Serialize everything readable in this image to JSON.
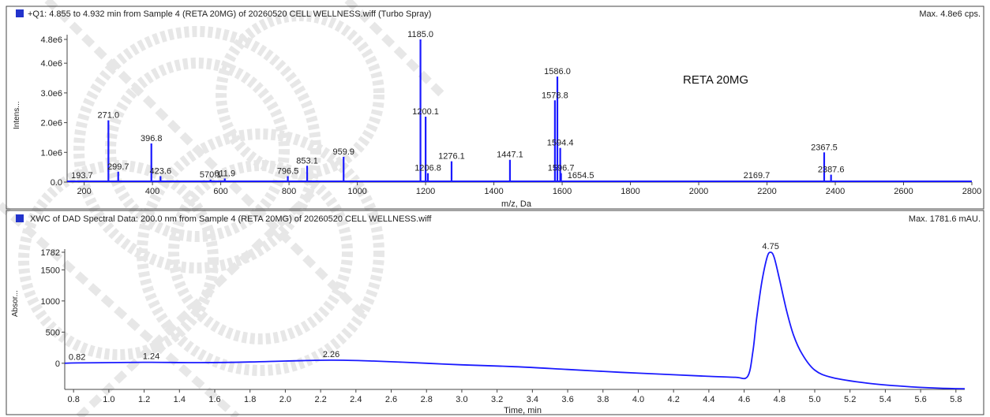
{
  "colors": {
    "trace": "#1a1aff",
    "frame": "#333333",
    "text": "#222222",
    "watermark": "#d4d4d4"
  },
  "chart_data": [
    {
      "type": "line",
      "title": "+Q1: 4.855 to 4.932 min from Sample 4 (RETA 20MG) of 20260520 CELL WELLNESS.wiff (Turbo Spray)",
      "max_label": "Max. 4.8e6 cps.",
      "annotation": "RETA 20MG",
      "xlabel": "m/z, Da",
      "ylabel": "Intens...",
      "xlim": [
        150,
        2800
      ],
      "ylim": [
        0,
        4.8
      ],
      "x_ticks": [
        200,
        400,
        600,
        800,
        1000,
        1200,
        1400,
        1600,
        1800,
        2000,
        2200,
        2400,
        2600,
        2800
      ],
      "y_ticks": [
        {
          "v": 0.0,
          "label": "0.0"
        },
        {
          "v": 1.0,
          "label": "1.0e6"
        },
        {
          "v": 2.0,
          "label": "2.0e6"
        },
        {
          "v": 3.0,
          "label": "3.0e6"
        },
        {
          "v": 4.0,
          "label": "4.0e6"
        },
        {
          "v": 4.8,
          "label": "4.8e6"
        }
      ],
      "peaks": [
        [
          193.7,
          0.05
        ],
        [
          271.0,
          2.08
        ],
        [
          299.7,
          0.35
        ],
        [
          396.8,
          1.3
        ],
        [
          423.6,
          0.2
        ],
        [
          570.1,
          0.08
        ],
        [
          611.9,
          0.12
        ],
        [
          796.5,
          0.2
        ],
        [
          853.1,
          0.55
        ],
        [
          959.9,
          0.85
        ],
        [
          1185.0,
          4.8
        ],
        [
          1200.1,
          2.2
        ],
        [
          1206.8,
          0.3
        ],
        [
          1276.1,
          0.7
        ],
        [
          1447.1,
          0.75
        ],
        [
          1586.0,
          3.55
        ],
        [
          1578.8,
          2.75
        ],
        [
          1594.4,
          1.15
        ],
        [
          1596.7,
          0.3
        ],
        [
          1654.5,
          0.05
        ],
        [
          2169.7,
          0.05
        ],
        [
          2367.5,
          1.0
        ],
        [
          2387.6,
          0.25
        ]
      ],
      "peak_labels": [
        {
          "x": 193.7,
          "y": 0.05,
          "text": "193.7"
        },
        {
          "x": 271.0,
          "y": 2.08,
          "text": "271.0"
        },
        {
          "x": 299.7,
          "y": 0.35,
          "text": "299.7"
        },
        {
          "x": 396.8,
          "y": 1.3,
          "text": "396.8"
        },
        {
          "x": 423.6,
          "y": 0.2,
          "text": "423.6"
        },
        {
          "x": 570.1,
          "y": 0.08,
          "text": "570.1"
        },
        {
          "x": 611.9,
          "y": 0.12,
          "text": "611.9"
        },
        {
          "x": 796.5,
          "y": 0.2,
          "text": "796.5"
        },
        {
          "x": 853.1,
          "y": 0.55,
          "text": "853.1"
        },
        {
          "x": 959.9,
          "y": 0.85,
          "text": "959.9"
        },
        {
          "x": 1185.0,
          "y": 4.8,
          "text": "1185.0"
        },
        {
          "x": 1200.1,
          "y": 2.2,
          "text": "1200.1"
        },
        {
          "x": 1206.8,
          "y": 0.3,
          "text": "1206.8"
        },
        {
          "x": 1276.1,
          "y": 0.7,
          "text": "1276.1"
        },
        {
          "x": 1447.1,
          "y": 0.75,
          "text": "1447.1"
        },
        {
          "x": 1586.0,
          "y": 3.55,
          "text": "1586.0"
        },
        {
          "x": 1578.8,
          "y": 2.75,
          "text": "1578.8"
        },
        {
          "x": 1594.4,
          "y": 1.15,
          "text": "1594.4"
        },
        {
          "x": 1596.7,
          "y": 0.3,
          "text": "1596.7"
        },
        {
          "x": 1654.5,
          "y": 0.05,
          "text": "1654.5"
        },
        {
          "x": 2169.7,
          "y": 0.05,
          "text": "2169.7"
        },
        {
          "x": 2367.5,
          "y": 1.0,
          "text": "2367.5"
        },
        {
          "x": 2387.6,
          "y": 0.25,
          "text": "2387.6"
        }
      ]
    },
    {
      "type": "line",
      "title": "XWC of DAD Spectral Data: 200.0 nm from Sample 4 (RETA 20MG) of 20260520 CELL WELLNESS.wiff",
      "max_label": "Max. 1781.6 mAU.",
      "xlabel": "Time, min",
      "ylabel": "Absor...",
      "xlim": [
        0.75,
        5.85
      ],
      "ylim": [
        -420,
        1782
      ],
      "x_ticks": [
        0.8,
        1.0,
        1.2,
        1.4,
        1.6,
        1.8,
        2.0,
        2.2,
        2.4,
        2.6,
        2.8,
        3.0,
        3.2,
        3.4,
        3.6,
        3.8,
        4.0,
        4.2,
        4.4,
        4.6,
        4.8,
        5.0,
        5.2,
        5.4,
        5.6,
        5.8
      ],
      "y_ticks": [
        {
          "v": 0,
          "label": "0"
        },
        {
          "v": 500,
          "label": "500"
        },
        {
          "v": 1000,
          "label": "1000"
        },
        {
          "v": 1500,
          "label": "1500"
        },
        {
          "v": 1782,
          "label": "1782"
        }
      ],
      "x": [
        0.75,
        0.82,
        1.0,
        1.24,
        1.5,
        1.8,
        2.0,
        2.26,
        2.5,
        2.8,
        3.0,
        3.3,
        3.6,
        3.9,
        4.2,
        4.4,
        4.55,
        4.62,
        4.65,
        4.67,
        4.7,
        4.73,
        4.75,
        4.77,
        4.8,
        4.84,
        4.88,
        4.93,
        5.0,
        5.1,
        5.3,
        5.5,
        5.7,
        5.85
      ],
      "y": [
        0,
        5,
        10,
        15,
        10,
        20,
        35,
        50,
        35,
        0,
        -25,
        -55,
        -100,
        -145,
        -185,
        -210,
        -225,
        -210,
        200,
        700,
        1300,
        1700,
        1782,
        1700,
        1350,
        850,
        450,
        140,
        -110,
        -230,
        -320,
        -370,
        -400,
        -410
      ],
      "peak_labels": [
        {
          "x": 0.82,
          "y": 5,
          "text": "0.82"
        },
        {
          "x": 1.24,
          "y": 15,
          "text": "1.24"
        },
        {
          "x": 2.26,
          "y": 50,
          "text": "2.26"
        },
        {
          "x": 4.75,
          "y": 1782,
          "text": "4.75"
        }
      ]
    }
  ]
}
